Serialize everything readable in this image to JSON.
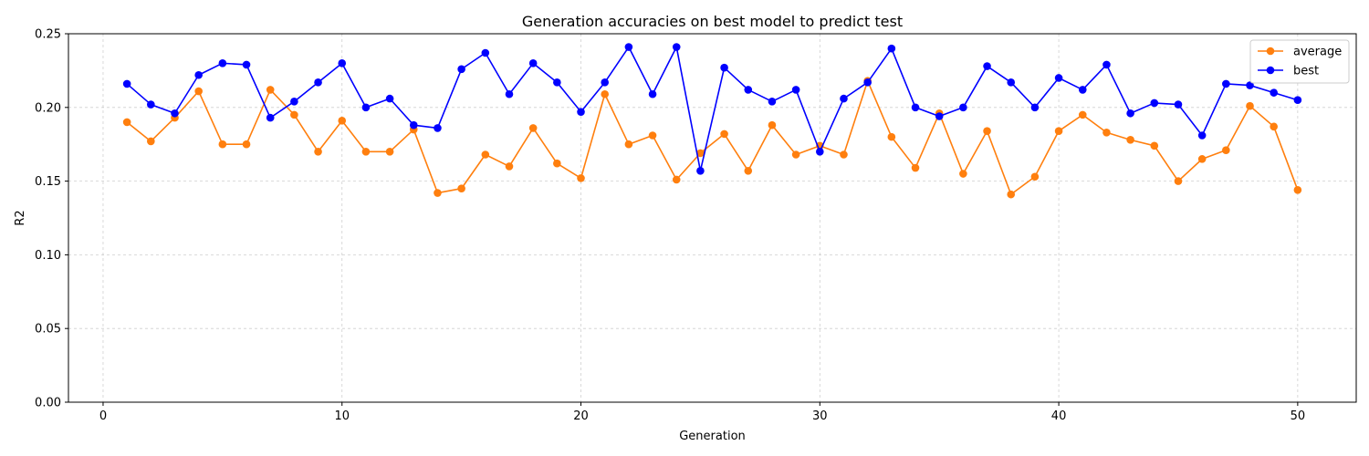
{
  "chart_data": {
    "type": "line",
    "title": "Generation accuracies on best model to predict test",
    "xlabel": "Generation",
    "ylabel": "R2",
    "xlim": [
      -1.45,
      52.45
    ],
    "ylim": [
      0,
      0.25
    ],
    "xticks": [
      0,
      10,
      20,
      30,
      40,
      50
    ],
    "xtick_labels": [
      "0",
      "10",
      "20",
      "30",
      "40",
      "50"
    ],
    "yticks": [
      0,
      0.05,
      0.1,
      0.15,
      0.2,
      0.25
    ],
    "ytick_labels": [
      "0.00",
      "0.05",
      "0.10",
      "0.15",
      "0.20",
      "0.25"
    ],
    "grid": true,
    "legend_position": "top-right",
    "x": [
      1,
      2,
      3,
      4,
      5,
      6,
      7,
      8,
      9,
      10,
      11,
      12,
      13,
      14,
      15,
      16,
      17,
      18,
      19,
      20,
      21,
      22,
      23,
      24,
      25,
      26,
      27,
      28,
      29,
      30,
      31,
      32,
      33,
      34,
      35,
      36,
      37,
      38,
      39,
      40,
      41,
      42,
      43,
      44,
      45,
      46,
      47,
      48,
      49,
      50
    ],
    "series": [
      {
        "name": "average",
        "color": "#ff7f0e",
        "values": [
          0.19,
          0.177,
          0.193,
          0.211,
          0.175,
          0.175,
          0.212,
          0.195,
          0.17,
          0.191,
          0.17,
          0.17,
          0.185,
          0.142,
          0.145,
          0.168,
          0.16,
          0.186,
          0.162,
          0.152,
          0.209,
          0.175,
          0.181,
          0.151,
          0.169,
          0.182,
          0.157,
          0.188,
          0.168,
          0.174,
          0.168,
          0.218,
          0.18,
          0.159,
          0.196,
          0.155,
          0.184,
          0.141,
          0.153,
          0.184,
          0.195,
          0.183,
          0.178,
          0.174,
          0.15,
          0.165,
          0.171,
          0.201,
          0.187,
          0.144
        ]
      },
      {
        "name": "best",
        "color": "#0000ff",
        "values": [
          0.216,
          0.202,
          0.196,
          0.222,
          0.23,
          0.229,
          0.193,
          0.204,
          0.217,
          0.23,
          0.2,
          0.206,
          0.188,
          0.186,
          0.226,
          0.237,
          0.209,
          0.23,
          0.217,
          0.197,
          0.217,
          0.241,
          0.209,
          0.241,
          0.157,
          0.227,
          0.212,
          0.204,
          0.212,
          0.17,
          0.206,
          0.217,
          0.24,
          0.2,
          0.194,
          0.2,
          0.228,
          0.217,
          0.2,
          0.22,
          0.212,
          0.229,
          0.196,
          0.203,
          0.202,
          0.181,
          0.216,
          0.215,
          0.21,
          0.205
        ]
      }
    ]
  }
}
